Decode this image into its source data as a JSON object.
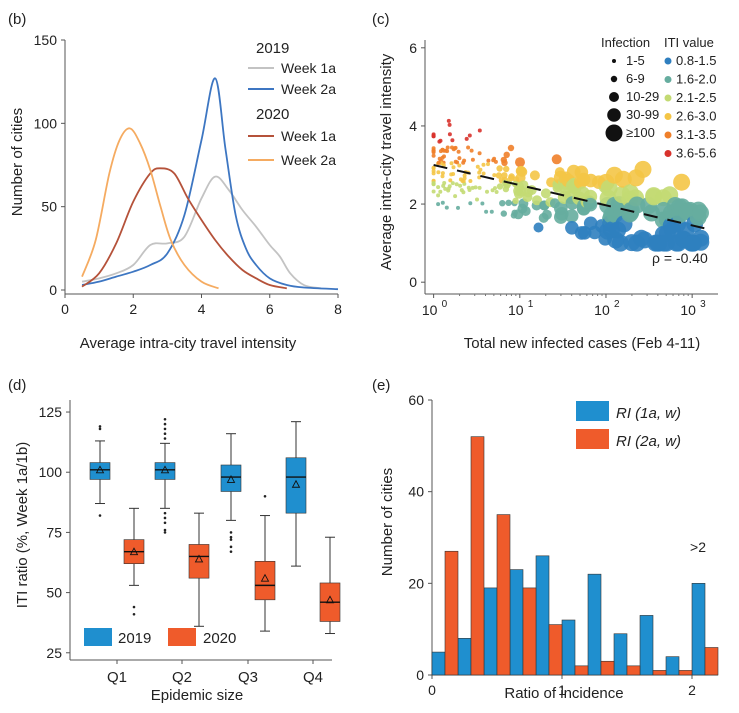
{
  "colors": {
    "c2019w1": "#c3c3c3",
    "c2019w2": "#3d76c2",
    "c2020w1": "#b5523a",
    "c2020w2": "#f5ab61",
    "box2019": "#1f8fcf",
    "box2020": "#ef5b2b",
    "iti": [
      "#2f7fbf",
      "#66ad9f",
      "#c3da73",
      "#f4c546",
      "#ef7f2a",
      "#d8322c"
    ]
  },
  "chart_data": [
    {
      "panel": "(b)",
      "type": "line",
      "xlabel": "Average intra-city travel intensity",
      "ylabel": "Number of cities",
      "xlim": [
        0,
        8
      ],
      "ylim": [
        0,
        150
      ],
      "xticks": [
        "0",
        "2",
        "4",
        "6",
        "8"
      ],
      "yticks": [
        "0",
        "50",
        "100",
        "150"
      ],
      "legend": {
        "group1": "2019",
        "group2": "2020",
        "week1": "Week 1a",
        "week2": "Week 2a"
      },
      "series": [
        {
          "name": "2019 Week 1a",
          "color_key": "c2019w1",
          "points": [
            [
              0.5,
              5
            ],
            [
              1,
              7
            ],
            [
              1.5,
              10
            ],
            [
              2,
              15
            ],
            [
              2.5,
              27
            ],
            [
              3,
              28
            ],
            [
              3.5,
              32
            ],
            [
              4,
              55
            ],
            [
              4.4,
              68
            ],
            [
              4.8,
              60
            ],
            [
              5.2,
              48
            ],
            [
              5.6,
              38
            ],
            [
              6,
              27
            ],
            [
              6.3,
              20
            ],
            [
              6.6,
              10
            ],
            [
              7,
              3
            ],
            [
              7.5,
              1
            ]
          ]
        },
        {
          "name": "2019 Week 2a",
          "color_key": "c2019w2",
          "points": [
            [
              0.5,
              3
            ],
            [
              1,
              5
            ],
            [
              1.5,
              8
            ],
            [
              2,
              11
            ],
            [
              2.5,
              15
            ],
            [
              3,
              22
            ],
            [
              3.5,
              45
            ],
            [
              4,
              90
            ],
            [
              4.4,
              127
            ],
            [
              4.7,
              85
            ],
            [
              5,
              45
            ],
            [
              5.3,
              25
            ],
            [
              5.6,
              15
            ],
            [
              6,
              7
            ],
            [
              6.5,
              3
            ],
            [
              7,
              1.5
            ],
            [
              8,
              0.5
            ]
          ]
        },
        {
          "name": "2020 Week 1a",
          "color_key": "c2020w1",
          "points": [
            [
              0.5,
              2
            ],
            [
              1,
              10
            ],
            [
              1.5,
              28
            ],
            [
              2,
              53
            ],
            [
              2.5,
              70
            ],
            [
              2.8,
              73
            ],
            [
              3.2,
              70
            ],
            [
              3.6,
              55
            ],
            [
              4,
              42
            ],
            [
              4.4,
              30
            ],
            [
              4.8,
              20
            ],
            [
              5.2,
              12
            ],
            [
              5.6,
              7
            ],
            [
              6,
              3
            ],
            [
              6.5,
              1
            ]
          ]
        },
        {
          "name": "2020 Week 2a",
          "color_key": "c2020w2",
          "points": [
            [
              0.5,
              8
            ],
            [
              0.9,
              30
            ],
            [
              1.3,
              70
            ],
            [
              1.6,
              90
            ],
            [
              1.9,
              97
            ],
            [
              2.2,
              88
            ],
            [
              2.5,
              72
            ],
            [
              2.8,
              50
            ],
            [
              3.1,
              30
            ],
            [
              3.5,
              15
            ],
            [
              4,
              5
            ],
            [
              4.5,
              1
            ]
          ]
        }
      ]
    },
    {
      "panel": "(c)",
      "type": "scatter",
      "xlabel": "Total new infected cases (Feb 4-11)",
      "ylabel": "Average intra-city travel intensity",
      "xscale": "log",
      "xlim_log10": [
        -0.1,
        3.3
      ],
      "ylim": [
        -0.2,
        6.2
      ],
      "xticks": [
        {
          "exp": 0,
          "label": "0"
        },
        {
          "exp": 1,
          "label": "1"
        },
        {
          "exp": 2,
          "label": "2"
        },
        {
          "exp": 3,
          "label": "3"
        }
      ],
      "xtick_base": "10",
      "yticks": [
        "0",
        "2",
        "4",
        "6"
      ],
      "regression": {
        "x_log10": [
          0,
          3.2
        ],
        "y": [
          3.0,
          1.35
        ]
      },
      "rho_text": "ρ = -0.40",
      "legend_infection_title": "Infection",
      "legend_infection": [
        "1-5",
        "6-9",
        "10-29",
        "30-99",
        "≥100"
      ],
      "legend_iti_title": "ITI value",
      "legend_iti": [
        "0.8-1.5",
        "1.6-2.0",
        "2.1-2.5",
        "2.6-3.0",
        "3.1-3.5",
        "3.6-5.6"
      ],
      "point_count": 300
    },
    {
      "panel": "(d)",
      "type": "box",
      "xlabel": "Epidemic size",
      "ylabel": "ITI ratio (%, Week 1a/1b)",
      "ylim": [
        22,
        130
      ],
      "yticks": [
        "25",
        "50",
        "75",
        "100",
        "125"
      ],
      "categories": [
        "Q1",
        "Q2",
        "Q3",
        "Q4"
      ],
      "legend": [
        "2019",
        "2020"
      ],
      "series": [
        {
          "name": "2019",
          "color_key": "box2019",
          "boxes": [
            {
              "min": 87,
              "q1": 97,
              "median": 101,
              "q3": 104,
              "max": 113,
              "mean": 101,
              "outliers": [
                82,
                118,
                119
              ]
            },
            {
              "min": 85,
              "q1": 97,
              "median": 101,
              "q3": 104,
              "max": 112,
              "mean": 101,
              "outliers": [
                75,
                76,
                79,
                81,
                83,
                114,
                116,
                118,
                120,
                122
              ]
            },
            {
              "min": 80,
              "q1": 92,
              "median": 98,
              "q3": 103,
              "max": 116,
              "mean": 97,
              "outliers": [
                67,
                69,
                72,
                73,
                75
              ]
            },
            {
              "min": 61,
              "q1": 83,
              "median": 98,
              "q3": 106,
              "max": 121,
              "mean": 95,
              "outliers": []
            }
          ]
        },
        {
          "name": "2020",
          "color_key": "box2020",
          "boxes": [
            {
              "min": 53,
              "q1": 62,
              "median": 67,
              "q3": 72,
              "max": 85,
              "mean": 67,
              "outliers": [
                41,
                44
              ]
            },
            {
              "min": 36,
              "q1": 56,
              "median": 65,
              "q3": 70,
              "max": 83,
              "mean": 64,
              "outliers": []
            },
            {
              "min": 34,
              "q1": 47,
              "median": 53,
              "q3": 63,
              "max": 82,
              "mean": 56,
              "outliers": [
                90
              ]
            },
            {
              "min": 33,
              "q1": 38,
              "median": 46,
              "q3": 54,
              "max": 73,
              "mean": 47,
              "outliers": []
            }
          ]
        }
      ]
    },
    {
      "panel": "(e)",
      "type": "bar",
      "xlabel": "Ratio of incidence",
      "ylabel": "Number of cities",
      "xlim": [
        0,
        2.2
      ],
      "ylim": [
        0,
        60
      ],
      "xticks": [
        "0",
        "1",
        "2"
      ],
      "yticks": [
        "0",
        "20",
        "40",
        "60"
      ],
      "bin_width": 0.2,
      "bin_starts": [
        0,
        0.2,
        0.4,
        0.6,
        0.8,
        1.0,
        1.2,
        1.4,
        1.6,
        1.8,
        2.0
      ],
      "series": [
        {
          "name": "RI (1a, w)",
          "color_key": "box2019",
          "values": [
            5,
            8,
            19,
            23,
            26,
            12,
            22,
            9,
            13,
            4,
            20
          ]
        },
        {
          "name": "RI (2a, w)",
          "color_key": "box2020",
          "values": [
            27,
            52,
            35,
            19,
            11,
            2,
            3,
            2,
            1,
            1,
            6
          ]
        }
      ],
      "annotation": ">2"
    }
  ]
}
